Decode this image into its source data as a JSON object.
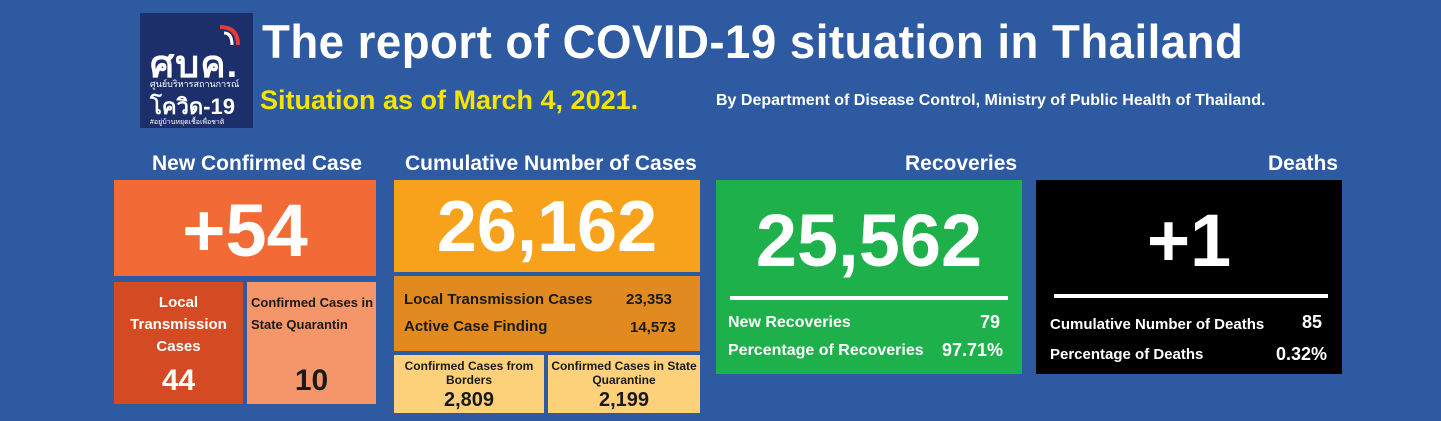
{
  "logo": {
    "line1": "ศบค.",
    "line2": "ศูนย์บริหารสถานการณ์",
    "line3": "โควิด-19",
    "line4": "#อยู่บ้านหยุดเชื้อเพื่อชาติ"
  },
  "title": "The report of COVID-19 situation in Thailand",
  "situation": "Situation as of March 4, 2021.",
  "byline": "By Department of Disease Control, Ministry of Public Health of Thailand.",
  "new_confirmed": {
    "header": "New Confirmed Case",
    "value": "+54",
    "local_label": "Local Transmission Cases",
    "local_value": "44",
    "quarantine_label": "Confirmed Cases in State Quarantin",
    "quarantine_value": "10"
  },
  "cumulative": {
    "header": "Cumulative Number of Cases",
    "value": "26,162",
    "local_label": "Local Transmission Cases",
    "local_value": "23,353",
    "active_label": "Active Case Finding",
    "active_value": "14,573",
    "borders_label": "Confirmed Cases from Borders",
    "borders_value": "2,809",
    "quarantine_label": "Confirmed Cases in State Quarantine",
    "quarantine_value": "2,199"
  },
  "recoveries": {
    "header": "Recoveries",
    "value": "25,562",
    "new_label": "New Recoveries",
    "new_value": "79",
    "pct_label": "Percentage of Recoveries",
    "pct_value": "97.71%"
  },
  "deaths": {
    "header": "Deaths",
    "value": "+1",
    "cum_label": "Cumulative Number of Deaths",
    "cum_value": "85",
    "pct_label": "Percentage of Deaths",
    "pct_value": "0.32%"
  },
  "colors": {
    "background": "#2d5aa0",
    "new_case": "#f26b36",
    "local_cases": "#d44a22",
    "quarantine_cases": "#f5966a",
    "cumulative": "#f8a21b",
    "cumulative_detail": "#e08a1f",
    "cumulative_sub": "#fdd07a",
    "recoveries": "#1eb14b",
    "deaths": "#000000",
    "situation_text": "#f4e400"
  }
}
